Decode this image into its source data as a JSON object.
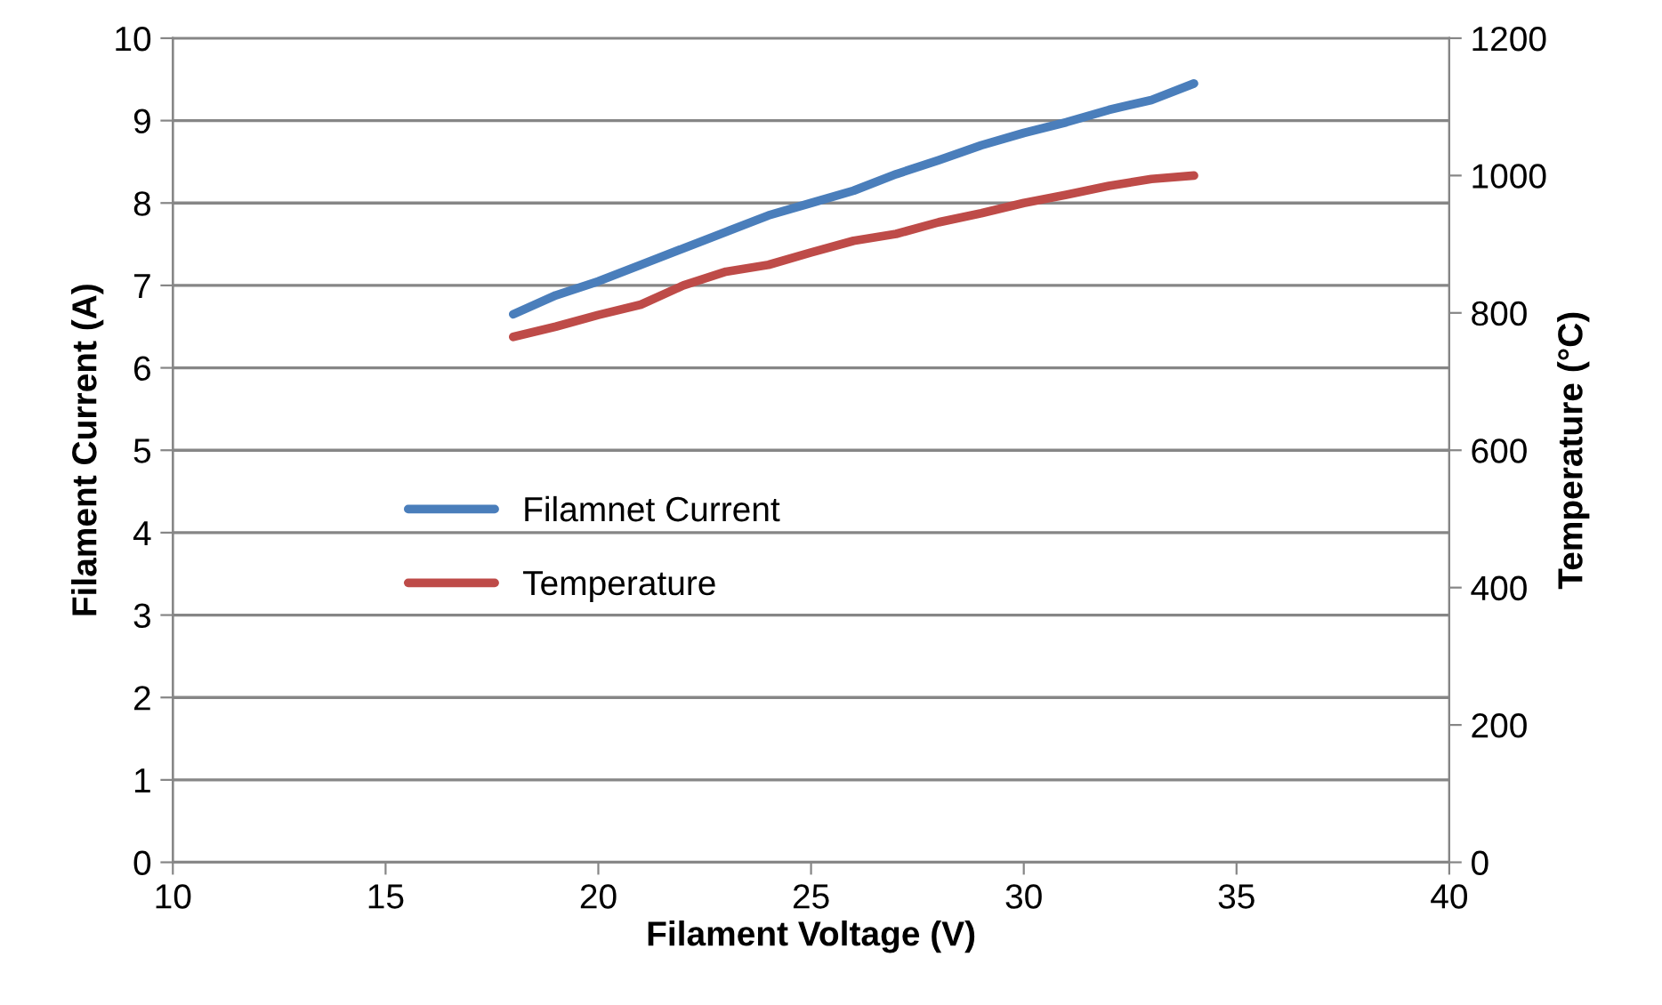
{
  "chart_data": {
    "type": "line",
    "xlabel": "Filament Voltage (V)",
    "ylabel": "Filament Current (A)",
    "y2label": "Temperature (°C)",
    "x": [
      18,
      19,
      20,
      21,
      22,
      23,
      24,
      25,
      26,
      27,
      28,
      29,
      30,
      31,
      32,
      33,
      34
    ],
    "series": [
      {
        "name": "Filamnet Current",
        "color": "#4a7ebb",
        "values": [
          6.65,
          6.88,
          7.05,
          7.25,
          7.45,
          7.65,
          7.85,
          8.0,
          8.15,
          8.35,
          8.52,
          8.7,
          8.85,
          8.98,
          9.13,
          9.25,
          9.45
        ]
      },
      {
        "name": "Temperature",
        "color": "#be4b48",
        "axis": "y2",
        "values": [
          765,
          780,
          797,
          812,
          840,
          860,
          870,
          888,
          905,
          915,
          932,
          945,
          960,
          972,
          985,
          995,
          1000
        ]
      }
    ],
    "xlim": [
      10,
      40
    ],
    "xticks": [
      10,
      15,
      20,
      25,
      30,
      35,
      40
    ],
    "ylim": [
      0,
      10
    ],
    "yticks": [
      0,
      1,
      2,
      3,
      4,
      5,
      6,
      7,
      8,
      9,
      10
    ],
    "y2lim": [
      0,
      1200
    ],
    "y2ticks": [
      0,
      200,
      400,
      600,
      800,
      1000,
      1200
    ],
    "grid": "y",
    "legend": "left",
    "marker": "none",
    "line_style": "solid"
  }
}
